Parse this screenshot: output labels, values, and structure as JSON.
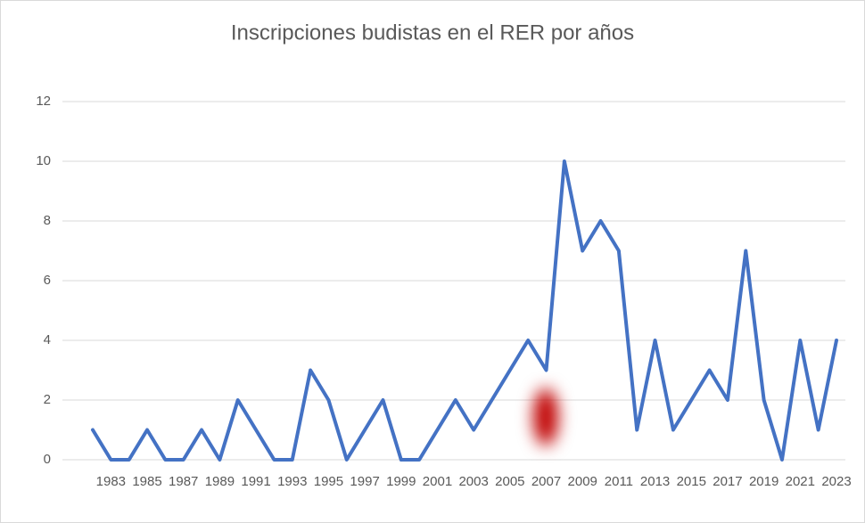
{
  "chart_data": {
    "type": "line",
    "title": "Inscripciones budistas en el RER por años",
    "categories": [
      null,
      "1983",
      null,
      "1985",
      null,
      "1987",
      null,
      "1989",
      null,
      "1991",
      null,
      "1993",
      null,
      "1995",
      null,
      "1997",
      null,
      "1999",
      null,
      "2001",
      null,
      "2003",
      null,
      "2005",
      null,
      "2007",
      null,
      "2009",
      null,
      "2011",
      null,
      "2013",
      null,
      "2015",
      null,
      "2017",
      null,
      "2019",
      null,
      "2021",
      null,
      "2023"
    ],
    "values": [
      1,
      0,
      0,
      1,
      0,
      0,
      1,
      0,
      2,
      1,
      0,
      0,
      3,
      2,
      0,
      1,
      2,
      0,
      0,
      1,
      2,
      1,
      2,
      3,
      4,
      3,
      10,
      7,
      8,
      7,
      1,
      4,
      1,
      2,
      3,
      2,
      7,
      2,
      0,
      4,
      1,
      4
    ],
    "color": "#4472c4",
    "ylim": [
      0,
      12
    ],
    "yticks": [
      0,
      2,
      4,
      6,
      8,
      10,
      12
    ],
    "grid": true
  }
}
